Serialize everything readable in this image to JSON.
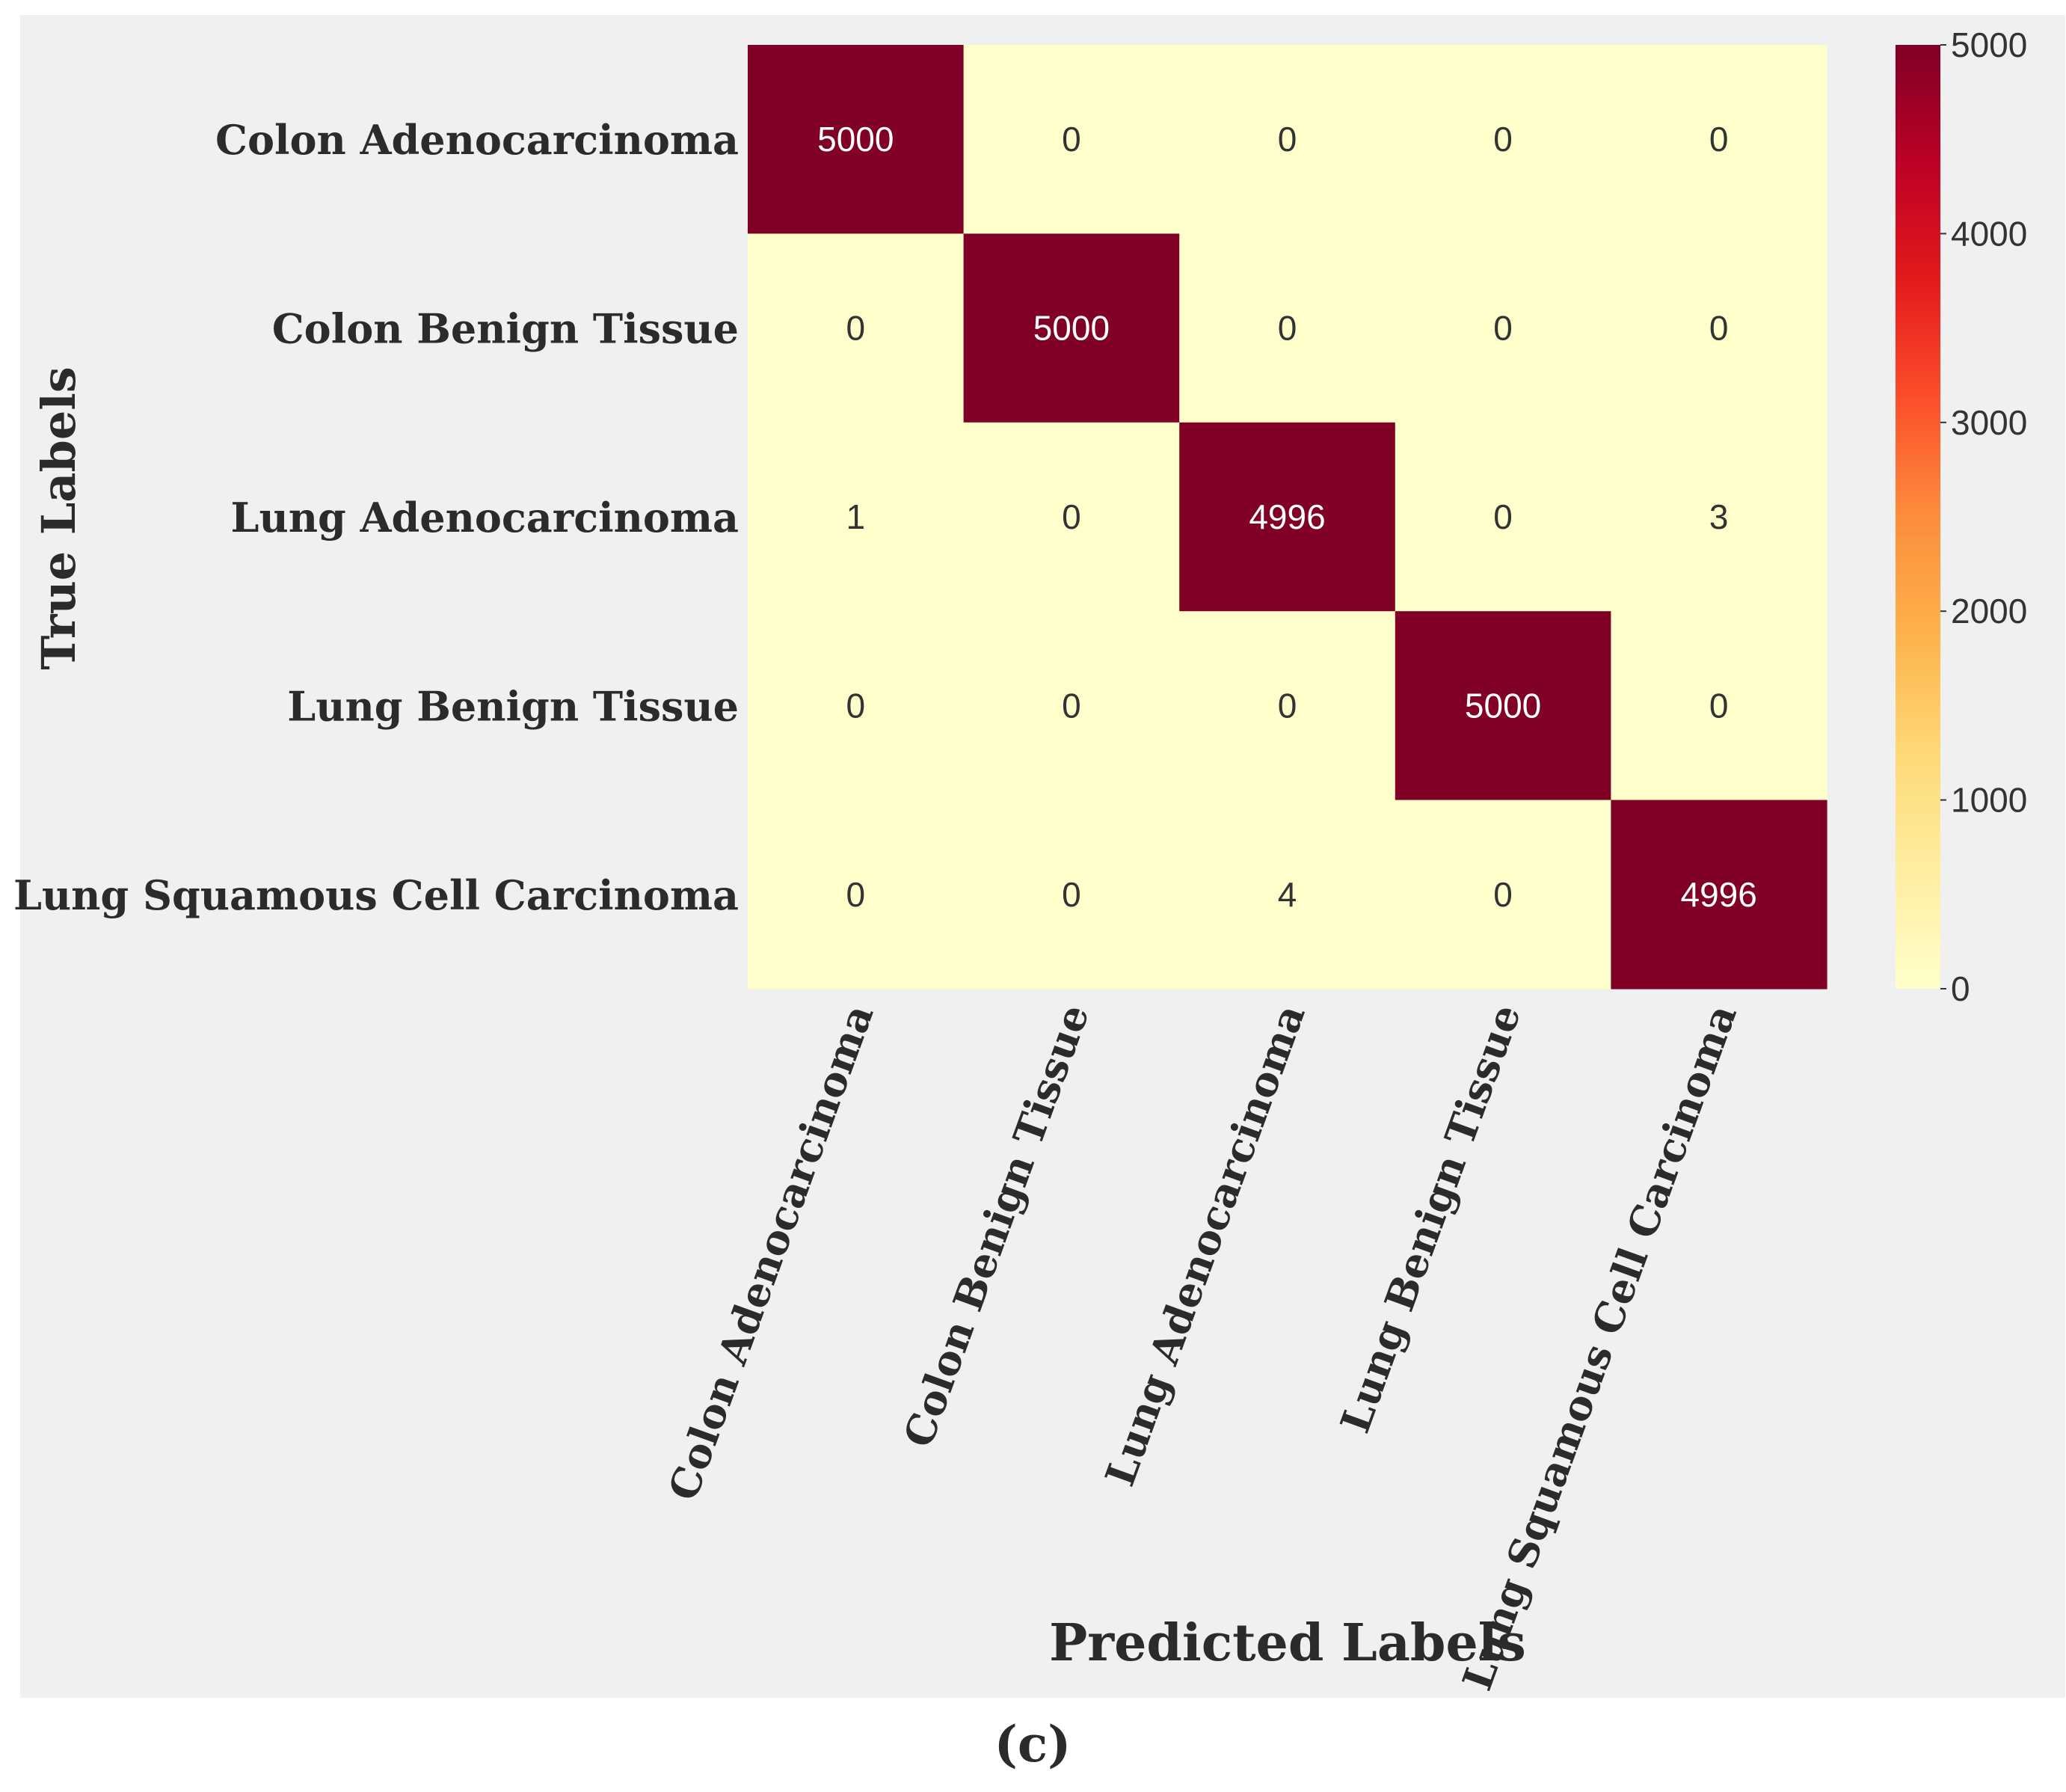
{
  "chart_data": {
    "type": "heatmap",
    "title": "",
    "xlabel": "Predicted Labels",
    "ylabel": "True Labels",
    "x_categories": [
      "Colon Adenocarcinoma",
      "Colon Benign Tissue",
      "Lung Adenocarcinoma",
      "Lung Benign Tissue",
      "Lung Squamous Cell Carcinoma"
    ],
    "y_categories": [
      "Colon Adenocarcinoma",
      "Colon Benign Tissue",
      "Lung Adenocarcinoma",
      "Lung Benign Tissue",
      "Lung Squamous Cell Carcinoma"
    ],
    "values": [
      [
        5000,
        0,
        0,
        0,
        0
      ],
      [
        0,
        5000,
        0,
        0,
        0
      ],
      [
        1,
        0,
        4996,
        0,
        3
      ],
      [
        0,
        0,
        0,
        5000,
        0
      ],
      [
        0,
        0,
        4,
        0,
        4996
      ]
    ],
    "colorbar": {
      "range": [
        0,
        5000
      ],
      "ticks": [
        0,
        1000,
        2000,
        3000,
        4000,
        5000
      ],
      "colors": [
        "#ffffcc",
        "#ffeda0",
        "#fed976",
        "#feb24c",
        "#fd8d3c",
        "#fc4e2a",
        "#e31a1c",
        "#bd0026",
        "#800026"
      ]
    },
    "grid": false,
    "colors": {
      "background": "#f0f0f0",
      "cell_text_low": "#333333",
      "cell_text_high": "#ffffff"
    }
  },
  "caption": "(c)"
}
